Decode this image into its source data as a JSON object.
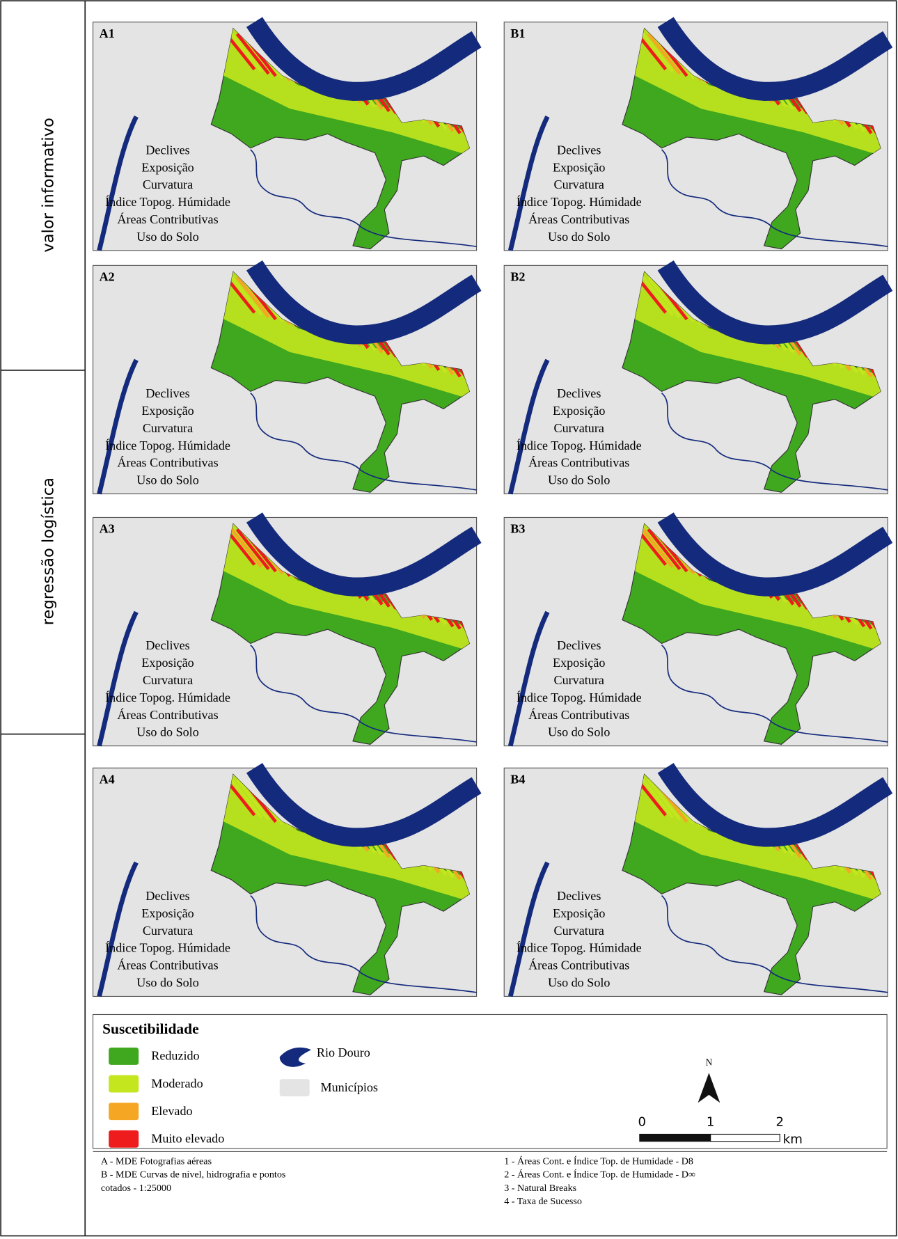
{
  "row_labels": [
    "valor informativo",
    "regressão logística"
  ],
  "panels": [
    {
      "label": "A1",
      "factors": [
        "Declives",
        "Exposição",
        "Curvatura",
        "Índice Topog. Húmidade",
        "Áreas Contributivas",
        "Uso do Solo"
      ]
    },
    {
      "label": "B1",
      "factors": [
        "Declives",
        "Exposição",
        "Curvatura",
        "Índice Topog. Húmidade",
        "Áreas Contributivas",
        "Uso do Solo"
      ]
    },
    {
      "label": "A2",
      "factors": [
        "Declives",
        "Exposição",
        "Curvatura",
        "Índice Topog. Húmidade",
        "Áreas Contributivas",
        "Uso do Solo"
      ]
    },
    {
      "label": "B2",
      "factors": [
        "Declives",
        "Exposição",
        "Curvatura",
        "Índice Topog. Húmidade",
        "Áreas Contributivas",
        "Uso do Solo"
      ]
    },
    {
      "label": "A3",
      "factors": [
        "Declives",
        "Exposição",
        "Curvatura",
        "Índice Topog. Húmidade",
        "Áreas Contributivas",
        "Uso do Solo"
      ]
    },
    {
      "label": "B3",
      "factors": [
        "Declives",
        "Exposição",
        "Curvatura",
        "Índice Topog. Húmidade",
        "Áreas Contributivas",
        "Uso do Solo"
      ]
    },
    {
      "label": "A4",
      "factors": [
        "Declives",
        "Exposição",
        "Curvatura",
        "Índice Topog. Húmidade",
        "Áreas Contributivas",
        "Uso do Solo"
      ]
    },
    {
      "label": "B4",
      "factors": [
        "Declives",
        "Exposição",
        "Curvatura",
        "Índice Topog. Húmidade",
        "Áreas Contributivas",
        "Uso do Solo"
      ]
    }
  ],
  "legend": {
    "title": "Suscetibilidade",
    "classes": [
      {
        "name": "Reduzido",
        "color": "#3fa81e"
      },
      {
        "name": "Moderado",
        "color": "#c3e61e"
      },
      {
        "name": "Elevado",
        "color": "#f5a623"
      },
      {
        "name": "Muito elevado",
        "color": "#ee1c1c"
      }
    ],
    "features": [
      {
        "name": "Rio Douro",
        "color": "#142a7c"
      },
      {
        "name": "Municípios",
        "color": "#e4e4e4"
      }
    ]
  },
  "north": "N",
  "scale_bar": {
    "ticks": [
      "0",
      "1",
      "2"
    ],
    "unit": "km"
  },
  "notes": {
    "left": [
      "A - MDE Fotografias aéreas",
      "B - MDE Curvas de nível, hidrografia e pontos",
      "cotados - 1:25000"
    ],
    "right": [
      "1 - Áreas Cont. e Índice Top. de Humidade - D8",
      "2 - Áreas Cont. e Índice Top. de Humidade - D∞",
      "3 - Natural Breaks",
      "4 - Taxa de Sucesso"
    ]
  }
}
